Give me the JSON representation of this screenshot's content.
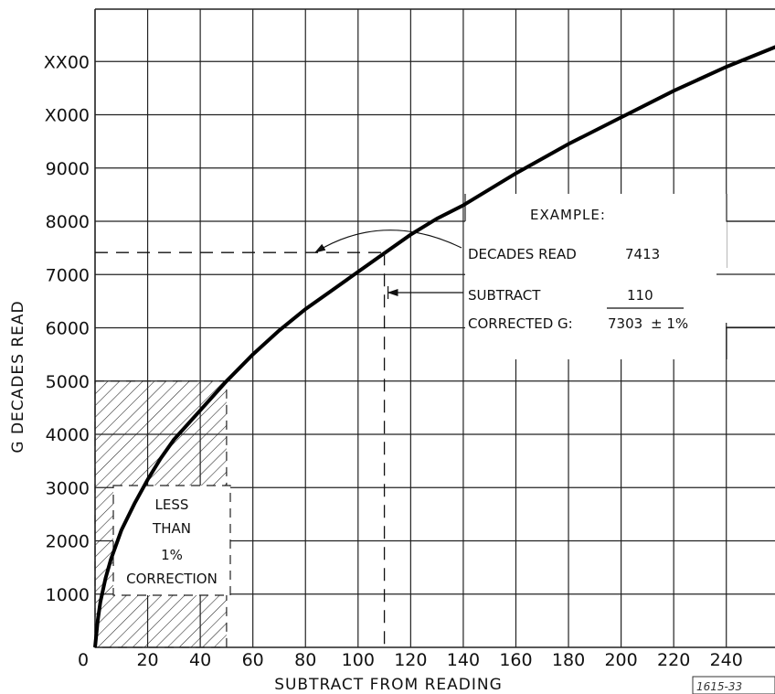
{
  "chart_data": {
    "type": "line",
    "xlabel": "SUBTRACT FROM READING",
    "ylabel": "G DECADES READ",
    "xlim": [
      0,
      260
    ],
    "ylim": [
      0,
      12000
    ],
    "x_ticks": [
      "0",
      "20",
      "40",
      "60",
      "80",
      "100",
      "120",
      "140",
      "160",
      "180",
      "200",
      "220",
      "240"
    ],
    "y_ticks": [
      "1000",
      "2000",
      "3000",
      "4000",
      "5000",
      "6000",
      "7000",
      "8000",
      "9000",
      "X000",
      "XX00"
    ],
    "grid": true,
    "series": [
      {
        "x": [
          0,
          1,
          2,
          4,
          6,
          10,
          15,
          20,
          25,
          30,
          40,
          50,
          60,
          70,
          80,
          90,
          100,
          110,
          120,
          130,
          140,
          160,
          180,
          200,
          220,
          240,
          260
        ],
        "y": [
          0,
          500,
          850,
          1300,
          1650,
          2200,
          2700,
          3150,
          3550,
          3900,
          4450,
          5000,
          5500,
          5950,
          6350,
          6700,
          7050,
          7400,
          7750,
          8050,
          8300,
          8900,
          9450,
          9950,
          10450,
          10900,
          11300
        ]
      }
    ],
    "shaded_region": {
      "x": [
        0,
        50
      ],
      "y": [
        0,
        5000
      ],
      "label": [
        "LESS",
        "THAN",
        "1%",
        "CORRECTION"
      ]
    },
    "example": {
      "title": "EXAMPLE:",
      "decades_read_label": "DECADES READ",
      "decades_read_value": "7413",
      "subtract_label": "SUBTRACT",
      "subtract_value": "110",
      "corrected_label": "CORRECTED G:",
      "corrected_value": "7303",
      "tolerance": "± 1%",
      "x": 110,
      "y": 7413
    },
    "figure_id": "1615-33"
  }
}
